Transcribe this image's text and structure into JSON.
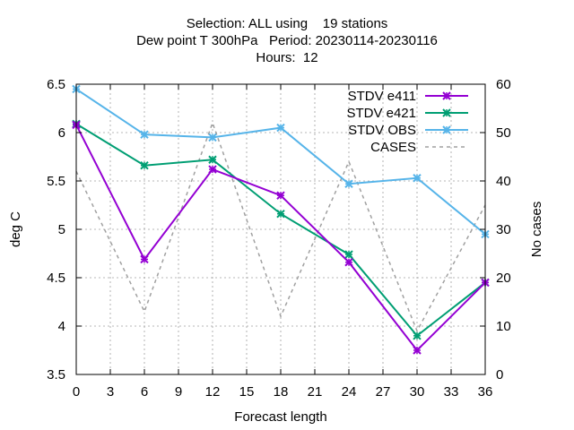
{
  "chart_data": {
    "type": "line",
    "title_lines": [
      "Selection: ALL using    19 stations",
      "Dew point T 300hPa   Period: 20230114-20230116",
      "Hours:  12"
    ],
    "xlabel": "Forecast length",
    "ylabel": "deg C",
    "y2label": "No cases",
    "xlim": [
      0,
      36
    ],
    "ylim": [
      3.5,
      6.5
    ],
    "y2lim": [
      0,
      60
    ],
    "xticks": [
      0,
      3,
      6,
      9,
      12,
      15,
      18,
      21,
      24,
      27,
      30,
      33,
      36
    ],
    "yticks": [
      "3.5",
      "4",
      "4.5",
      "5",
      "5.5",
      "6",
      "6.5"
    ],
    "y2ticks": [
      "0",
      "10",
      "20",
      "30",
      "40",
      "50",
      "60"
    ],
    "grid": true,
    "legend_position": "top-right",
    "x": [
      0,
      6,
      12,
      18,
      24,
      30,
      36
    ],
    "series": [
      {
        "name": "STDV e411",
        "color": "#9400d3",
        "axis": "y",
        "marker": "x",
        "values": [
          6.08,
          4.69,
          5.62,
          5.35,
          4.66,
          3.75,
          4.45
        ]
      },
      {
        "name": "STDV e421",
        "color": "#009e73",
        "axis": "y",
        "marker": "x",
        "values": [
          6.09,
          5.66,
          5.72,
          5.16,
          4.74,
          3.9,
          4.45
        ]
      },
      {
        "name": "STDV OBS",
        "color": "#56b4e9",
        "axis": "y",
        "marker": "x",
        "values": [
          6.45,
          5.98,
          5.95,
          6.05,
          5.47,
          5.53,
          4.95
        ]
      },
      {
        "name": "CASES",
        "color": "#a0a0a0",
        "axis": "y2",
        "dashed": true,
        "values": [
          42,
          13,
          52,
          12,
          44,
          9,
          35
        ]
      }
    ]
  }
}
